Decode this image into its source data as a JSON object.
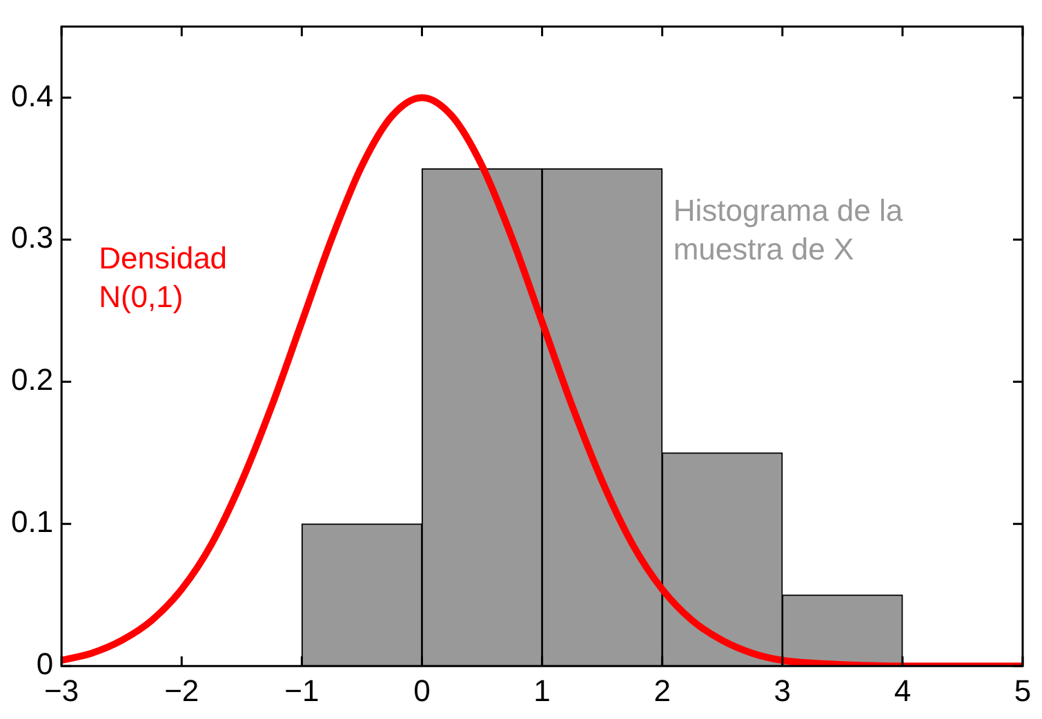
{
  "chart_data": {
    "type": "histogram",
    "series": [
      {
        "type": "histogram",
        "name": "Histograma de la muestra de X",
        "color": "#999999",
        "bins": [
          -1,
          0,
          1,
          2,
          3,
          4
        ],
        "values": [
          0.1,
          0.35,
          0.35,
          0.15,
          0.05
        ]
      },
      {
        "type": "line",
        "name": "Densidad N(0,1)",
        "color": "#ff0000",
        "x": [
          -3,
          -2.75,
          -2.5,
          -2.25,
          -2,
          -1.75,
          -1.5,
          -1.25,
          -1,
          -0.75,
          -0.5,
          -0.25,
          0,
          0.25,
          0.5,
          0.75,
          1,
          1.25,
          1.5,
          1.75,
          2,
          2.25,
          2.5,
          2.75,
          3,
          3.25,
          3.5,
          4,
          4.5,
          5
        ],
        "values": [
          0.004,
          0.009,
          0.018,
          0.032,
          0.054,
          0.086,
          0.13,
          0.183,
          0.242,
          0.301,
          0.352,
          0.387,
          0.4,
          0.387,
          0.352,
          0.301,
          0.242,
          0.183,
          0.13,
          0.086,
          0.054,
          0.032,
          0.018,
          0.009,
          0.004,
          0.002,
          0.001,
          0,
          0,
          0
        ]
      }
    ],
    "xlim": [
      -3,
      5
    ],
    "xticks": [
      -3,
      -2,
      -1,
      0,
      1,
      2,
      3,
      4,
      5
    ],
    "ylim": [
      0,
      0.45
    ],
    "yticks": [
      0,
      0.1,
      0.2,
      0.3,
      0.4
    ],
    "grid": false,
    "legend": false
  }
}
